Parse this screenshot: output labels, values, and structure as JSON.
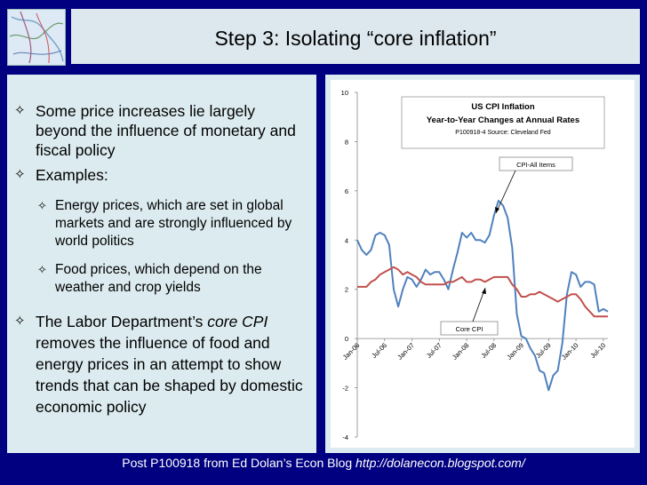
{
  "slide": {
    "title": "Step 3: Isolating “core inflation”",
    "bullets": [
      {
        "text": "Some price increases lie largely beyond the influence of monetary and fiscal policy"
      },
      {
        "text": "Examples:"
      },
      {
        "text": "Energy prices, which are set in global markets and are strongly influenced by world politics"
      },
      {
        "text": "Food prices, which depend on the weather and crop yields"
      },
      {
        "pre": "The Labor Department’s ",
        "em": "core CPI",
        "post": " removes the influence of food and energy prices in an attempt to show trends that can be shaped by domestic economic policy"
      }
    ],
    "footer": {
      "text": "Post P100918 from Ed Dolan’s Econ Blog ",
      "url": "http://dolanecon.blogspot.com/"
    }
  },
  "chart_data": {
    "type": "line",
    "title": "US CPI Inflation",
    "subtitle": "Year-to-Year Changes at Annual Rates",
    "source": "P100918-4 Source: Cleveland Fed",
    "ylim": [
      -4,
      10
    ],
    "yticks": [
      -4,
      -2,
      0,
      2,
      4,
      6,
      8,
      10
    ],
    "xticks": [
      "Jan-06",
      "Jul-06",
      "Jan-07",
      "Jul-07",
      "Jan-08",
      "Jul-08",
      "Jan-09",
      "Jul-09",
      "Jan-10",
      "Jul-10"
    ],
    "grid": false,
    "colors": {
      "all": "#4f81bd",
      "core": "#c0504d"
    },
    "series": [
      {
        "name": "CPI-All Items",
        "color": "#4f81bd",
        "values": [
          4.0,
          3.6,
          3.4,
          3.6,
          4.2,
          4.3,
          4.2,
          3.8,
          2.0,
          1.3,
          2.0,
          2.5,
          2.4,
          2.1,
          2.4,
          2.8,
          2.6,
          2.7,
          2.7,
          2.4,
          2.0,
          2.8,
          3.5,
          4.3,
          4.1,
          4.3,
          4.0,
          4.0,
          3.9,
          4.2,
          5.0,
          5.6,
          5.4,
          4.9,
          3.7,
          1.0,
          0.1,
          0.0,
          -0.4,
          -0.7,
          -1.3,
          -1.4,
          -2.1,
          -1.5,
          -1.3,
          -0.2,
          1.8,
          2.7,
          2.6,
          2.1,
          2.3,
          2.3,
          2.2,
          1.1,
          1.2,
          1.1
        ]
      },
      {
        "name": "Core CPI",
        "color": "#c0504d",
        "values": [
          2.1,
          2.1,
          2.1,
          2.3,
          2.4,
          2.6,
          2.7,
          2.8,
          2.9,
          2.8,
          2.6,
          2.7,
          2.6,
          2.5,
          2.3,
          2.2,
          2.2,
          2.2,
          2.2,
          2.2,
          2.3,
          2.3,
          2.4,
          2.5,
          2.3,
          2.3,
          2.4,
          2.4,
          2.3,
          2.4,
          2.5,
          2.5,
          2.5,
          2.5,
          2.2,
          2.0,
          1.7,
          1.7,
          1.8,
          1.8,
          1.9,
          1.8,
          1.7,
          1.6,
          1.5,
          1.6,
          1.7,
          1.8,
          1.8,
          1.6,
          1.3,
          1.1,
          0.9,
          0.9,
          0.9,
          0.9
        ]
      }
    ],
    "annotations": [
      {
        "label": "CPI-All Items",
        "series": 0
      },
      {
        "label": "Core CPI",
        "series": 1
      }
    ]
  }
}
